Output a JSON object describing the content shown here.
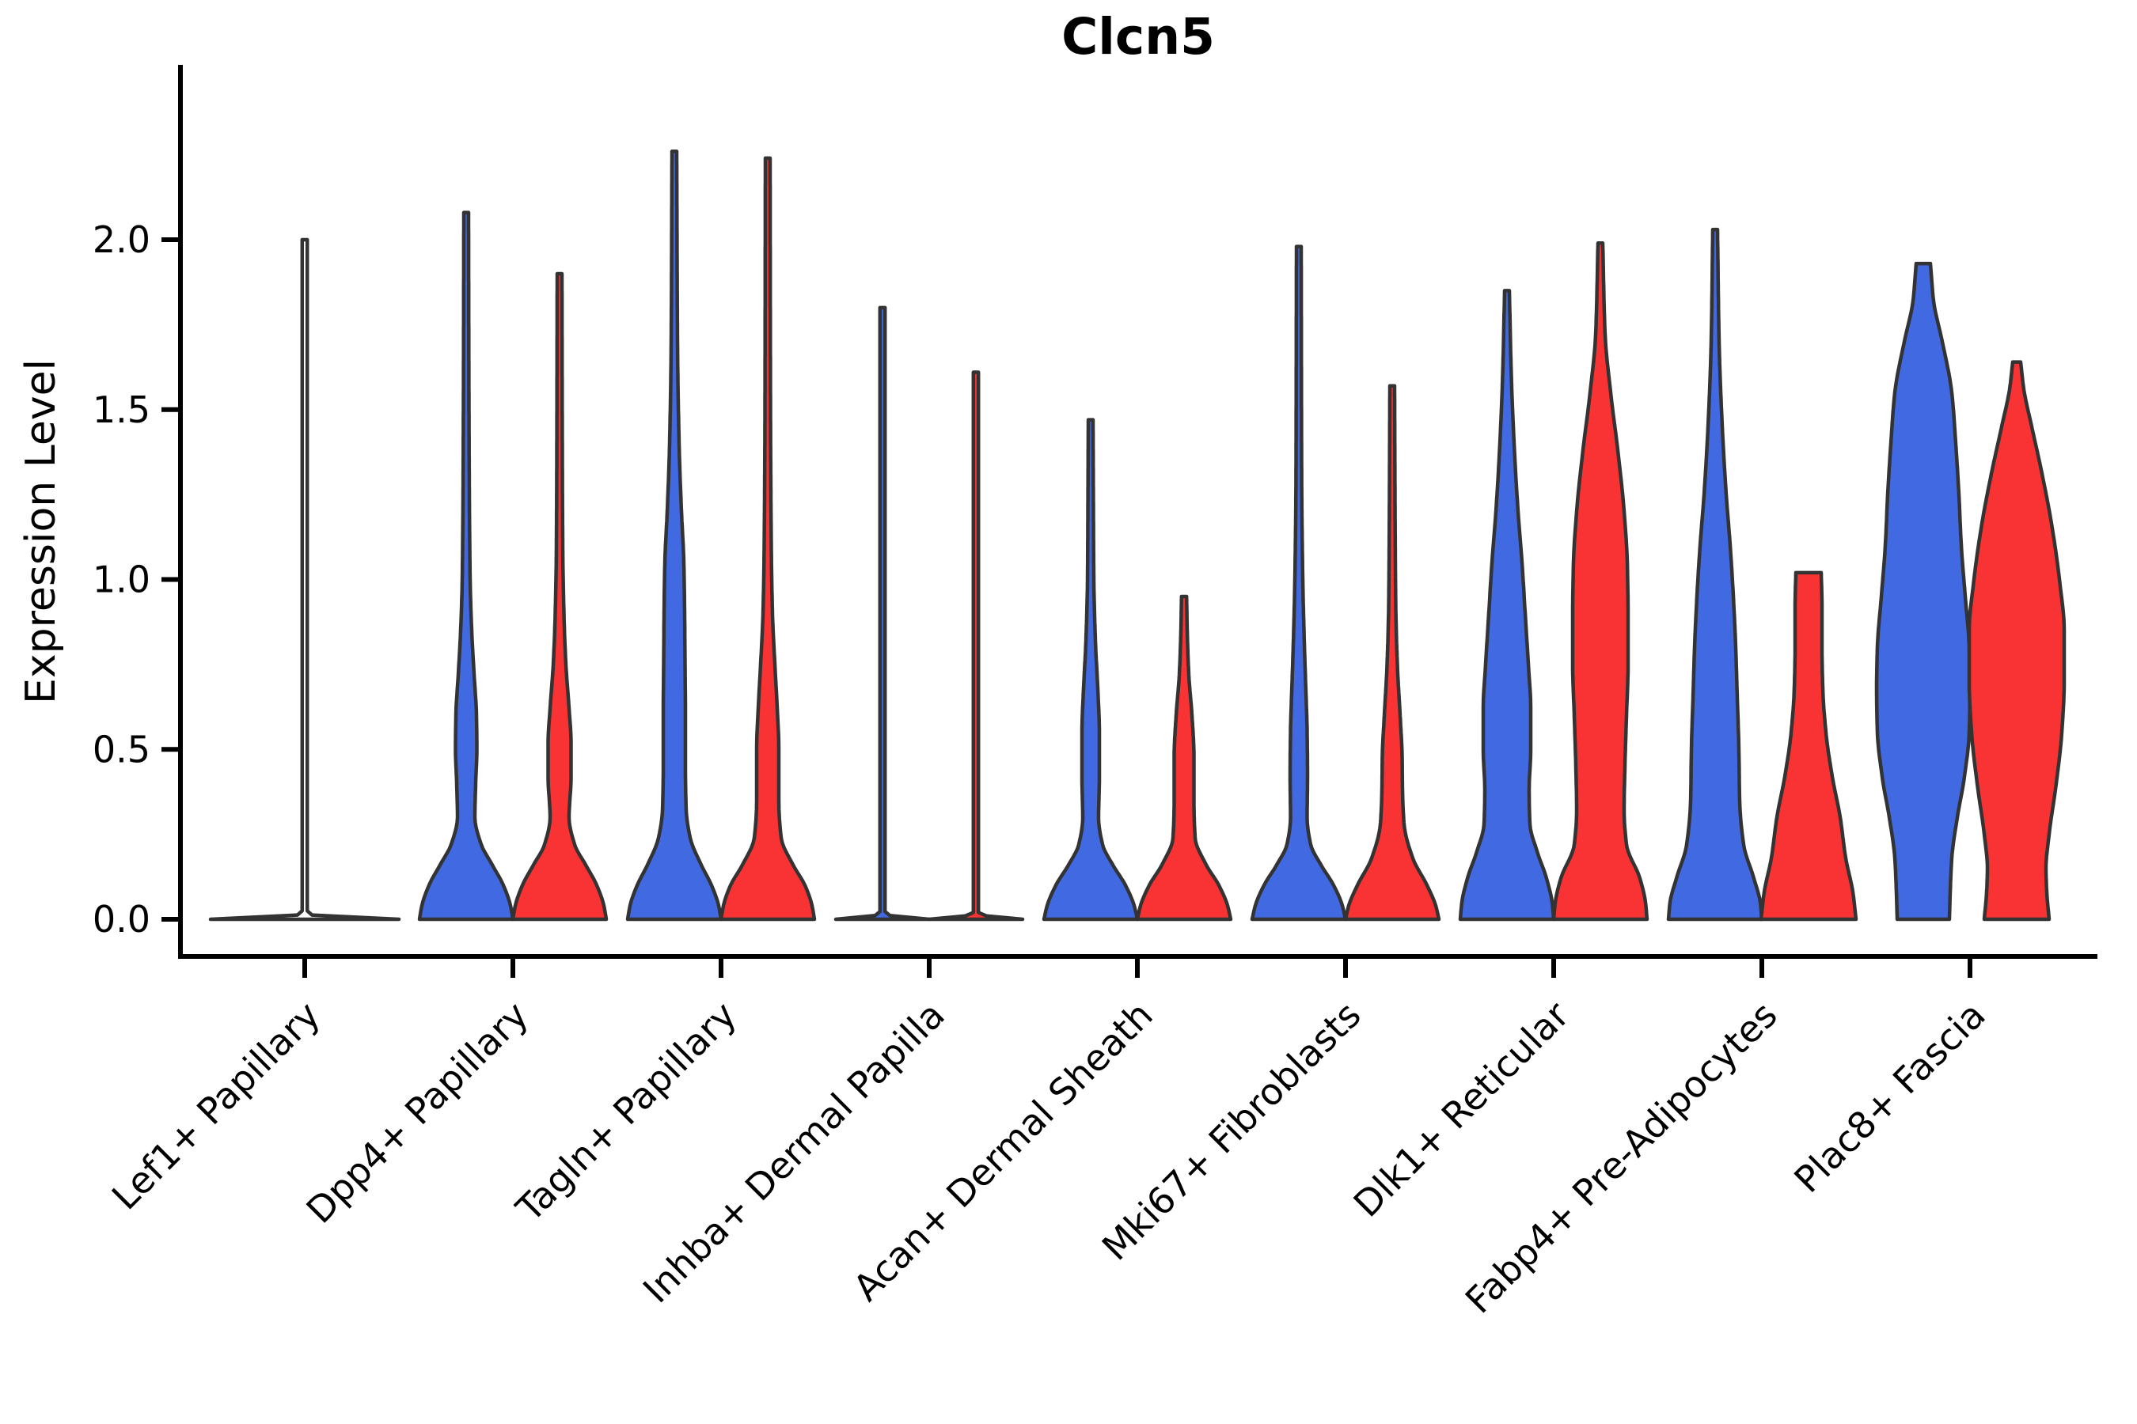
{
  "page": {
    "background": "#ffffff"
  },
  "chart_data": {
    "type": "violin",
    "title": "Clcn5",
    "ylabel": "Expression Level",
    "xlabel": "",
    "legend": "none",
    "grid": false,
    "ylim": [
      -0.1,
      2.5
    ],
    "ytick_values": [
      0.0,
      0.5,
      1.0,
      1.5,
      2.0
    ],
    "ytick_labels": [
      "0.0",
      "0.5",
      "1.0",
      "1.5",
      "2.0"
    ],
    "categories": [
      "Lef1+ Papillary",
      "Dpp4+ Papillary",
      "Tagln+ Papillary",
      "Inhba+ Dermal Papilla",
      "Acan+ Dermal Sheath",
      "Mki67+ Fibroblasts",
      "Dlk1+ Reticular",
      "Fabp4+ Pre-Adipocytes",
      "Plac8+ Fascia"
    ],
    "groups": [
      {
        "id": "blue",
        "color": "#4169E1"
      },
      {
        "id": "red",
        "color": "#F93333"
      }
    ],
    "outline_color": "#333333",
    "axis_color": "#000000",
    "profile_units": "profile points are [expression_value, density_halfwidth_px]; violins clipped flat at 0",
    "violins": [
      {
        "category_index": 0,
        "group": "single",
        "fill": "none",
        "max_expression": 2.0,
        "profile": [
          [
            0,
            119
          ],
          [
            0.015,
            3.2
          ],
          [
            2.0,
            3.2
          ]
        ]
      },
      {
        "category_index": 1,
        "group": "blue",
        "max_expression": 2.08,
        "profile": [
          [
            0,
            59
          ],
          [
            0.04,
            56
          ],
          [
            0.1,
            47
          ],
          [
            0.16,
            33
          ],
          [
            0.22,
            19
          ],
          [
            0.3,
            11
          ],
          [
            0.4,
            12
          ],
          [
            0.5,
            13.5
          ],
          [
            0.6,
            13
          ],
          [
            0.72,
            10
          ],
          [
            0.85,
            7
          ],
          [
            1.0,
            5
          ],
          [
            1.25,
            4
          ],
          [
            1.6,
            3.4
          ],
          [
            2.08,
            3
          ]
        ]
      },
      {
        "category_index": 1,
        "group": "red",
        "max_expression": 1.9,
        "profile": [
          [
            0,
            59
          ],
          [
            0.04,
            56
          ],
          [
            0.1,
            47
          ],
          [
            0.16,
            33
          ],
          [
            0.22,
            19
          ],
          [
            0.3,
            12
          ],
          [
            0.42,
            14.5
          ],
          [
            0.52,
            14.5
          ],
          [
            0.62,
            12
          ],
          [
            0.75,
            8
          ],
          [
            0.9,
            5.5
          ],
          [
            1.1,
            4
          ],
          [
            1.45,
            3.4
          ],
          [
            1.9,
            3
          ]
        ]
      },
      {
        "category_index": 2,
        "group": "blue",
        "max_expression": 2.26,
        "profile": [
          [
            0,
            59
          ],
          [
            0.04,
            56
          ],
          [
            0.1,
            47
          ],
          [
            0.16,
            34
          ],
          [
            0.24,
            20
          ],
          [
            0.32,
            15
          ],
          [
            0.45,
            14
          ],
          [
            0.6,
            14
          ],
          [
            0.75,
            13.5
          ],
          [
            0.9,
            13
          ],
          [
            1.05,
            12
          ],
          [
            1.2,
            9
          ],
          [
            1.4,
            6
          ],
          [
            1.7,
            4
          ],
          [
            2.26,
            3
          ]
        ]
      },
      {
        "category_index": 2,
        "group": "red",
        "max_expression": 2.24,
        "profile": [
          [
            0,
            59
          ],
          [
            0.04,
            56
          ],
          [
            0.1,
            47
          ],
          [
            0.16,
            32
          ],
          [
            0.24,
            17
          ],
          [
            0.35,
            14
          ],
          [
            0.5,
            14
          ],
          [
            0.62,
            12
          ],
          [
            0.75,
            9
          ],
          [
            0.9,
            6
          ],
          [
            1.1,
            4.5
          ],
          [
            1.5,
            3.5
          ],
          [
            2.24,
            3
          ]
        ]
      },
      {
        "category_index": 3,
        "group": "blue",
        "max_expression": 1.8,
        "profile": [
          [
            0,
            59
          ],
          [
            0.015,
            3.2
          ],
          [
            1.8,
            3.2
          ]
        ]
      },
      {
        "category_index": 3,
        "group": "red",
        "max_expression": 1.61,
        "profile": [
          [
            0,
            59
          ],
          [
            0.015,
            3.2
          ],
          [
            1.61,
            3.2
          ]
        ]
      },
      {
        "category_index": 4,
        "group": "blue",
        "max_expression": 1.47,
        "profile": [
          [
            0,
            59
          ],
          [
            0.04,
            55
          ],
          [
            0.1,
            44
          ],
          [
            0.16,
            28
          ],
          [
            0.22,
            15
          ],
          [
            0.3,
            10
          ],
          [
            0.42,
            11
          ],
          [
            0.55,
            11
          ],
          [
            0.68,
            9
          ],
          [
            0.82,
            6
          ],
          [
            1.0,
            4
          ],
          [
            1.25,
            3.4
          ],
          [
            1.47,
            3
          ]
        ]
      },
      {
        "category_index": 4,
        "group": "red",
        "max_expression": 0.95,
        "profile": [
          [
            0,
            59
          ],
          [
            0.04,
            55
          ],
          [
            0.1,
            44
          ],
          [
            0.16,
            28
          ],
          [
            0.24,
            14
          ],
          [
            0.35,
            12.5
          ],
          [
            0.48,
            12.5
          ],
          [
            0.6,
            10
          ],
          [
            0.72,
            6
          ],
          [
            0.85,
            4
          ],
          [
            0.95,
            3.2
          ]
        ]
      },
      {
        "category_index": 5,
        "group": "blue",
        "max_expression": 1.98,
        "profile": [
          [
            0,
            59
          ],
          [
            0.04,
            55
          ],
          [
            0.1,
            44
          ],
          [
            0.16,
            28
          ],
          [
            0.22,
            15
          ],
          [
            0.3,
            10.5
          ],
          [
            0.42,
            11
          ],
          [
            0.55,
            10.5
          ],
          [
            0.7,
            8.5
          ],
          [
            0.85,
            6.5
          ],
          [
            1.0,
            5
          ],
          [
            1.3,
            3.6
          ],
          [
            1.98,
            3
          ]
        ]
      },
      {
        "category_index": 5,
        "group": "red",
        "max_expression": 1.57,
        "profile": [
          [
            0,
            59
          ],
          [
            0.04,
            55
          ],
          [
            0.1,
            44
          ],
          [
            0.18,
            26
          ],
          [
            0.28,
            15
          ],
          [
            0.38,
            13
          ],
          [
            0.48,
            12.5
          ],
          [
            0.6,
            10
          ],
          [
            0.75,
            6.5
          ],
          [
            0.92,
            4.5
          ],
          [
            1.2,
            3.6
          ],
          [
            1.57,
            3
          ]
        ]
      },
      {
        "category_index": 6,
        "group": "blue",
        "max_expression": 1.85,
        "profile": [
          [
            0,
            59
          ],
          [
            0.05,
            57
          ],
          [
            0.12,
            50
          ],
          [
            0.2,
            38
          ],
          [
            0.28,
            29
          ],
          [
            0.38,
            28
          ],
          [
            0.5,
            30
          ],
          [
            0.62,
            30
          ],
          [
            0.75,
            27
          ],
          [
            0.9,
            23
          ],
          [
            1.05,
            19
          ],
          [
            1.2,
            14
          ],
          [
            1.4,
            9
          ],
          [
            1.6,
            5.5
          ],
          [
            1.85,
            3
          ]
        ]
      },
      {
        "category_index": 6,
        "group": "red",
        "max_expression": 1.99,
        "profile": [
          [
            0,
            59
          ],
          [
            0.05,
            57
          ],
          [
            0.12,
            50
          ],
          [
            0.22,
            33
          ],
          [
            0.32,
            30
          ],
          [
            0.45,
            31
          ],
          [
            0.6,
            33
          ],
          [
            0.75,
            35
          ],
          [
            0.9,
            35
          ],
          [
            1.05,
            34
          ],
          [
            1.2,
            30
          ],
          [
            1.38,
            22
          ],
          [
            1.55,
            13
          ],
          [
            1.72,
            6
          ],
          [
            1.99,
            3
          ]
        ]
      },
      {
        "category_index": 7,
        "group": "blue",
        "max_expression": 2.03,
        "profile": [
          [
            0,
            59
          ],
          [
            0.05,
            57
          ],
          [
            0.12,
            49
          ],
          [
            0.22,
            36
          ],
          [
            0.35,
            31
          ],
          [
            0.5,
            30
          ],
          [
            0.65,
            28
          ],
          [
            0.8,
            26
          ],
          [
            0.95,
            23
          ],
          [
            1.1,
            19
          ],
          [
            1.25,
            14
          ],
          [
            1.45,
            9
          ],
          [
            1.7,
            5
          ],
          [
            2.03,
            3
          ]
        ]
      },
      {
        "category_index": 7,
        "group": "red",
        "max_expression": 1.02,
        "profile": [
          [
            0,
            60
          ],
          [
            0.08,
            56
          ],
          [
            0.18,
            47
          ],
          [
            0.3,
            40
          ],
          [
            0.42,
            30
          ],
          [
            0.55,
            22
          ],
          [
            0.68,
            18
          ],
          [
            0.8,
            17
          ],
          [
            0.92,
            17
          ],
          [
            1.02,
            16
          ]
        ]
      },
      {
        "category_index": 8,
        "group": "blue",
        "max_expression": 1.93,
        "profile": [
          [
            0,
            33
          ],
          [
            0.08,
            34
          ],
          [
            0.18,
            36
          ],
          [
            0.3,
            43
          ],
          [
            0.42,
            52
          ],
          [
            0.55,
            58
          ],
          [
            0.68,
            59
          ],
          [
            0.8,
            58
          ],
          [
            0.95,
            53
          ],
          [
            1.1,
            48
          ],
          [
            1.25,
            45
          ],
          [
            1.4,
            41
          ],
          [
            1.55,
            36
          ],
          [
            1.7,
            24
          ],
          [
            1.82,
            13
          ],
          [
            1.93,
            9
          ]
        ]
      },
      {
        "category_index": 8,
        "group": "red",
        "max_expression": 1.64,
        "profile": [
          [
            0,
            41
          ],
          [
            0.08,
            38
          ],
          [
            0.15,
            37
          ],
          [
            0.25,
            41
          ],
          [
            0.4,
            50
          ],
          [
            0.55,
            57
          ],
          [
            0.7,
            60
          ],
          [
            0.85,
            60
          ],
          [
            1.0,
            54
          ],
          [
            1.15,
            45
          ],
          [
            1.3,
            33
          ],
          [
            1.45,
            19
          ],
          [
            1.56,
            9
          ],
          [
            1.64,
            5
          ]
        ]
      }
    ]
  }
}
